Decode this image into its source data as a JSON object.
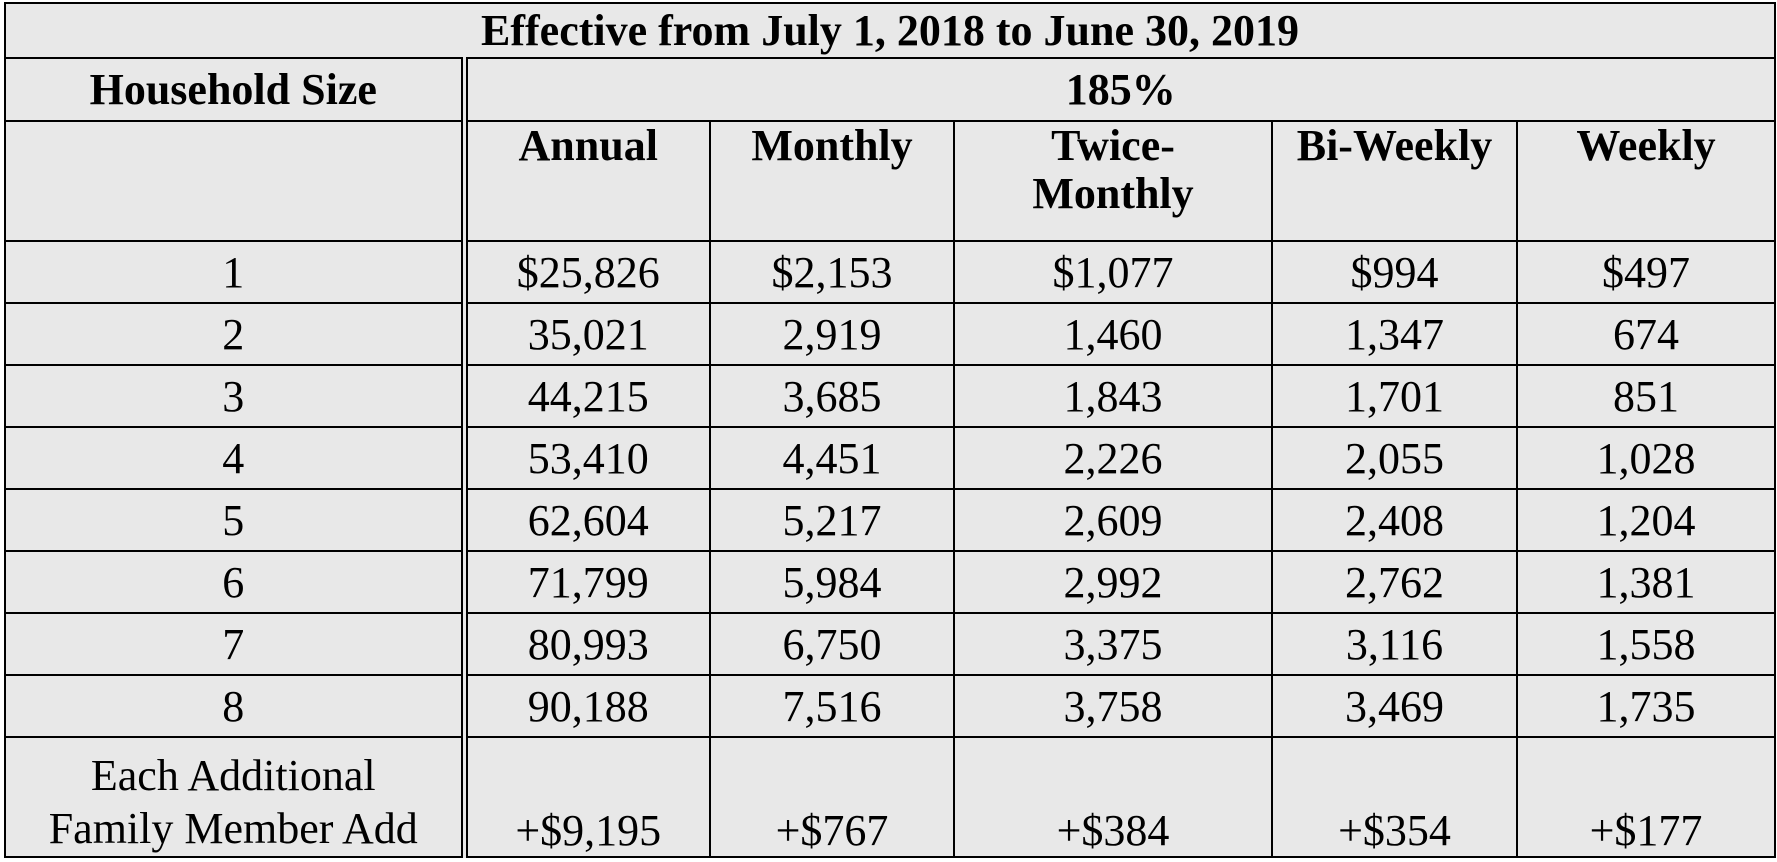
{
  "table": {
    "title": "Effective from July 1, 2018 to June 30, 2019",
    "household_header": "Household Size",
    "group_header": "185%",
    "columns": [
      "Annual",
      "Monthly",
      "Twice-Monthly",
      "Bi-Weekly",
      "Weekly"
    ],
    "column_lines": {
      "twice_monthly_line1": "Twice-",
      "twice_monthly_line2": "Monthly"
    },
    "rows": [
      {
        "size": "1",
        "annual": "$25,826",
        "monthly": "$2,153",
        "twice_monthly": "$1,077",
        "bi_weekly": "$994",
        "weekly": "$497"
      },
      {
        "size": "2",
        "annual": "35,021",
        "monthly": "2,919",
        "twice_monthly": "1,460",
        "bi_weekly": "1,347",
        "weekly": "674"
      },
      {
        "size": "3",
        "annual": "44,215",
        "monthly": "3,685",
        "twice_monthly": "1,843",
        "bi_weekly": "1,701",
        "weekly": "851"
      },
      {
        "size": "4",
        "annual": "53,410",
        "monthly": "4,451",
        "twice_monthly": "2,226",
        "bi_weekly": "2,055",
        "weekly": "1,028"
      },
      {
        "size": "5",
        "annual": "62,604",
        "monthly": "5,217",
        "twice_monthly": "2,609",
        "bi_weekly": "2,408",
        "weekly": "1,204"
      },
      {
        "size": "6",
        "annual": "71,799",
        "monthly": "5,984",
        "twice_monthly": "2,992",
        "bi_weekly": "2,762",
        "weekly": "1,381"
      },
      {
        "size": "7",
        "annual": "80,993",
        "monthly": "6,750",
        "twice_monthly": "3,375",
        "bi_weekly": "3,116",
        "weekly": "1,558"
      },
      {
        "size": "8",
        "annual": "90,188",
        "monthly": "7,516",
        "twice_monthly": "3,758",
        "bi_weekly": "3,469",
        "weekly": "1,735"
      }
    ],
    "additional": {
      "label_line1": "Each Additional",
      "label_line2": "Family Member Add",
      "annual": "+$9,195",
      "monthly": "+$767",
      "twice_monthly": "+$384",
      "bi_weekly": "+$354",
      "weekly": "+$177"
    }
  }
}
